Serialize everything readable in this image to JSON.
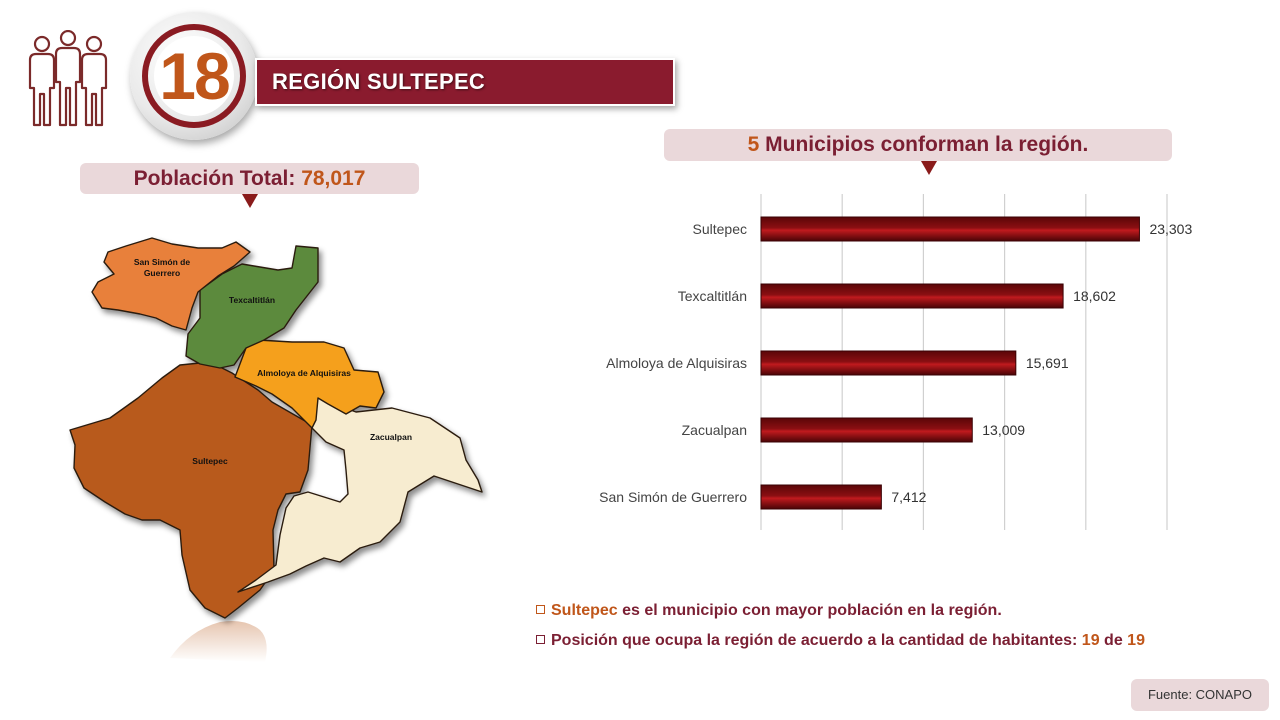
{
  "region": {
    "number": "18",
    "title": "REGIÓN SULTEPEC"
  },
  "population": {
    "label": "Población Total:",
    "value": "78,017"
  },
  "municipalities": {
    "count": "5",
    "label": "Municipios conforman la región."
  },
  "map": {
    "labels": {
      "san_simon": [
        "San Simón de",
        "Guerrero"
      ],
      "texcaltitlan": "Texcaltitlán",
      "almoloya": "Almoloya de Alquisiras",
      "sultepec": "Sultepec",
      "zacualpan": "Zacualpan"
    },
    "colors": {
      "san_simon": "#e8803a",
      "texcaltitlan": "#5b8a3c",
      "almoloya": "#f5a01a",
      "sultepec": "#b85a1c",
      "zacualpan": "#f7ecd0"
    }
  },
  "chart_data": {
    "type": "bar",
    "orientation": "horizontal",
    "categories": [
      "Sultepec",
      "Texcaltitlán",
      "Almoloya de Alquisiras",
      "Zacualpan",
      "San Simón de Guerrero"
    ],
    "values": [
      23303,
      18602,
      15691,
      13009,
      7412
    ],
    "value_labels": [
      "23,303",
      "18,602",
      "15,691",
      "13,009",
      "7,412"
    ],
    "xlim": [
      0,
      25000
    ],
    "grid": true,
    "bar_color": "#8b0f12"
  },
  "notes": {
    "note1_highlight": "Sultepec",
    "note1_text": "es el municipio con mayor población en la región.",
    "note2_text": "Posición que ocupa la región de acuerdo a la cantidad de habitantes:",
    "note2_pos": "19",
    "note2_de": "de",
    "note2_total": "19"
  },
  "source": "Fuente: CONAPO",
  "colors": {
    "accent": "#8a1b2e",
    "highlight": "#c0561a",
    "panel": "#ead8da"
  }
}
